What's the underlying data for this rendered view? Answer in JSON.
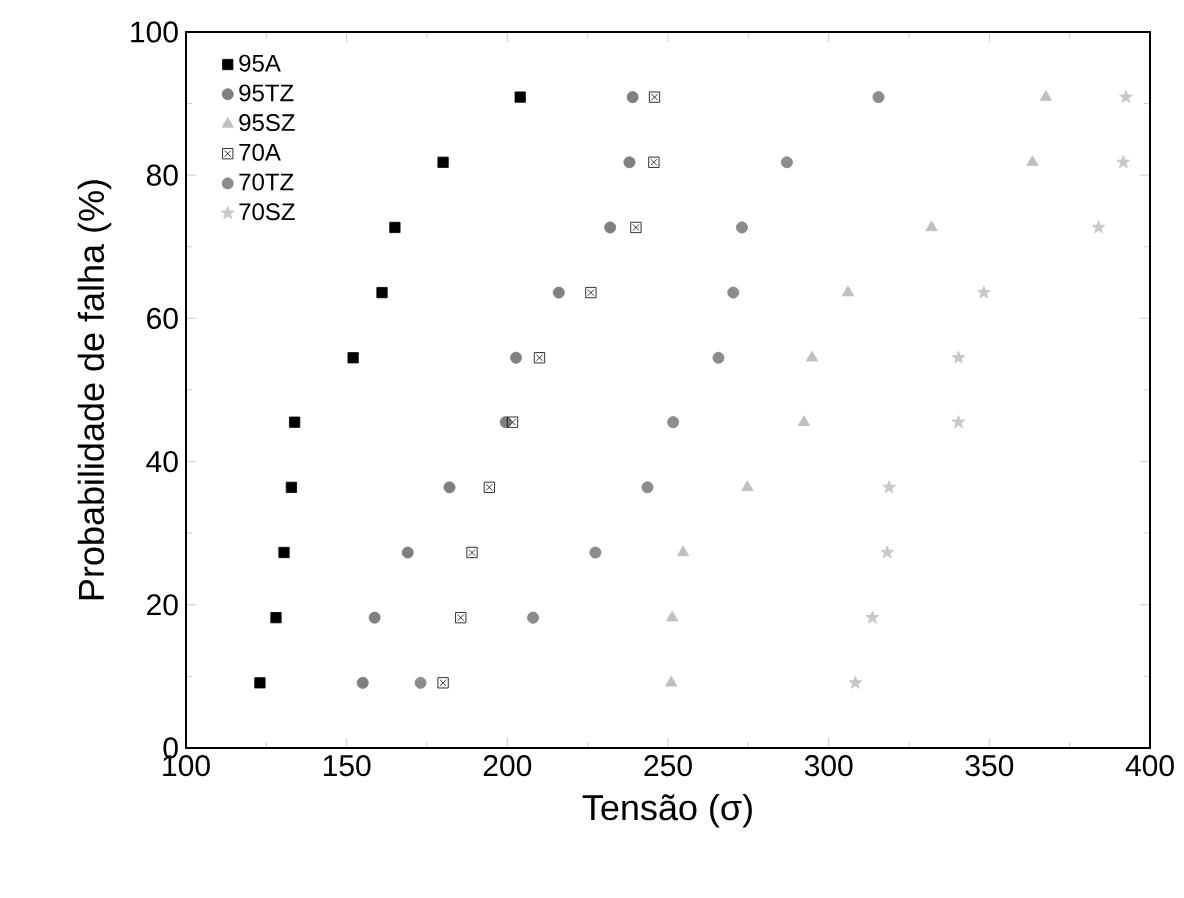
{
  "chart_data": {
    "type": "scatter",
    "xlabel": "Tensão (σ)",
    "ylabel": "Probabilidade de falha (%)",
    "xlim": [
      100,
      400
    ],
    "xticks": [
      100,
      150,
      200,
      250,
      300,
      350,
      400
    ],
    "ylim": [
      0,
      100
    ],
    "yticks": [
      0,
      20,
      40,
      60,
      80,
      100
    ],
    "legend": "top left",
    "grid": false,
    "series": [
      {
        "name": "95A",
        "color": "#000000",
        "marker": "square",
        "x": [
          123,
          128,
          130.5,
          132.8,
          133.8,
          152,
          161,
          165,
          180,
          204
        ],
        "values": [
          9.1,
          18.2,
          27.3,
          36.4,
          45.5,
          54.5,
          63.6,
          72.7,
          81.8,
          90.9
        ]
      },
      {
        "name": "95TZ",
        "color": "#808080",
        "marker": "circle",
        "x": [
          155,
          158.7,
          169,
          182,
          199.5,
          202.7,
          216,
          232,
          238,
          239
        ],
        "values": [
          9.1,
          18.2,
          27.3,
          36.4,
          45.5,
          54.5,
          63.6,
          72.7,
          81.8,
          90.9
        ]
      },
      {
        "name": "95SZ",
        "color": "#bfbfbf",
        "marker": "triangle",
        "x": [
          251,
          251.3,
          254.7,
          274.7,
          292.3,
          294.8,
          306,
          332,
          363.4,
          367.6
        ],
        "values": [
          9.1,
          18.2,
          27.3,
          36.4,
          45.5,
          54.5,
          63.6,
          72.7,
          81.8,
          90.9
        ]
      },
      {
        "name": "70A",
        "color": "#000000",
        "marker": "cross",
        "x": [
          180,
          185.5,
          189,
          194.4,
          201.6,
          210,
          226,
          240,
          245.6,
          245.8
        ],
        "values": [
          9.1,
          18.2,
          27.3,
          36.4,
          45.5,
          54.5,
          63.6,
          72.7,
          81.8,
          90.9
        ]
      },
      {
        "name": "70TZ",
        "color": "#8c8c8c",
        "marker": "circle",
        "x": [
          173,
          208,
          227.4,
          243.6,
          251.6,
          265.7,
          270.3,
          273,
          287,
          315.5
        ],
        "values": [
          9.1,
          18.2,
          27.3,
          36.4,
          45.5,
          54.5,
          63.6,
          72.7,
          81.8,
          90.9
        ]
      },
      {
        "name": "70SZ",
        "color": "#c8c8c8",
        "marker": "star",
        "x": [
          308.3,
          313.6,
          318.2,
          318.8,
          340.4,
          340.4,
          348.3,
          384,
          391.7,
          392.5
        ],
        "values": [
          9.1,
          18.2,
          27.3,
          36.4,
          45.5,
          54.5,
          63.6,
          72.7,
          81.8,
          90.9
        ]
      }
    ]
  }
}
